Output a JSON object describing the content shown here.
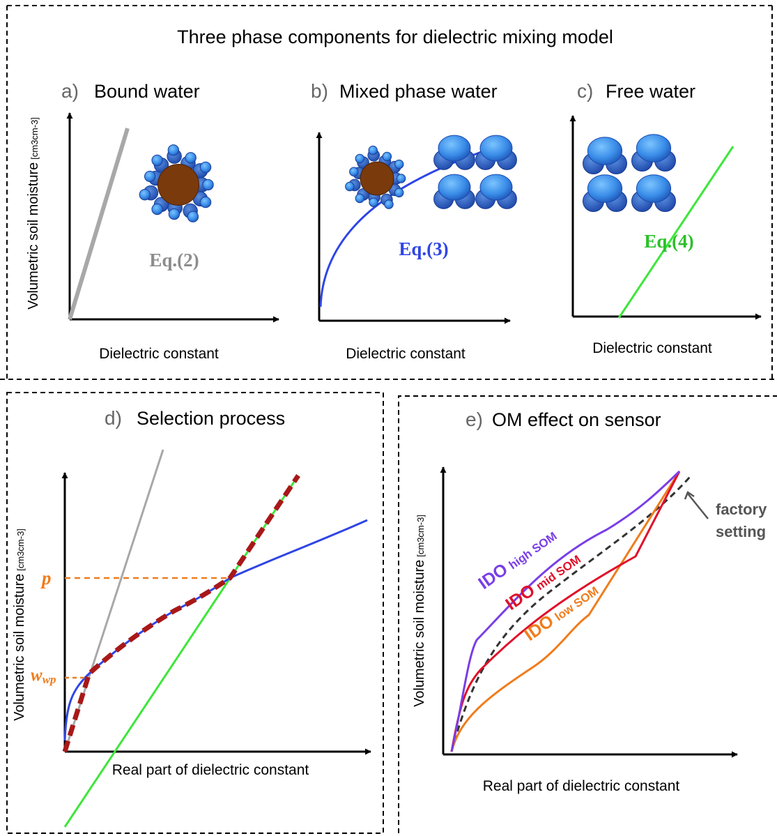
{
  "title": "Three phase components for dielectric mixing model",
  "panels": {
    "a": {
      "letter": "a)",
      "title": "Bound water",
      "equation": "Eq.(2)",
      "ylabel": "Volumetric soil moisture",
      "yunit": "[cm3cm-3]",
      "xlabel": "Dielectric constant"
    },
    "b": {
      "letter": "b)",
      "title": "Mixed phase water",
      "equation": "Eq.(3)",
      "xlabel": "Dielectric constant"
    },
    "c": {
      "letter": "c)",
      "title": "Free water",
      "equation": "Eq.(4)",
      "xlabel": "Dielectric constant"
    },
    "d": {
      "letter": "d)",
      "title": "Selection process",
      "ylabel": "Volumetric soil moisture",
      "yunit": "[cm3cm-3]",
      "xlabel": "Real part of dielectric constant",
      "p_label": "p",
      "wwp_main": "w",
      "wwp_sub": "wp"
    },
    "e": {
      "letter": "e)",
      "title": "OM effect on sensor",
      "ylabel": "Volumetric soil moisture",
      "yunit": "[cm3cm-3]",
      "xlabel": "Real part of dielectric constant",
      "curves": [
        {
          "main": "IDO",
          "sub": "high SOM"
        },
        {
          "main": "IDO",
          "sub": "mid SOM"
        },
        {
          "main": "IDO",
          "sub": "low SOM"
        }
      ],
      "factory_line1": "factory",
      "factory_line2": "setting"
    }
  },
  "colors": {
    "gray": "#a8a8a8",
    "blue": "#2f45e6",
    "green": "#3ee63a",
    "darkred": "#a81818",
    "orange": "#f07c1c",
    "purple": "#7a3ee6",
    "red": "#e0102a",
    "black": "#000000",
    "water": "#3a8de8",
    "water_dark": "#2360c0",
    "soil": "#7a3a0c",
    "eq2": "#8c8c8c",
    "eq3": "#2f45e6",
    "eq4": "#2cc02a"
  }
}
